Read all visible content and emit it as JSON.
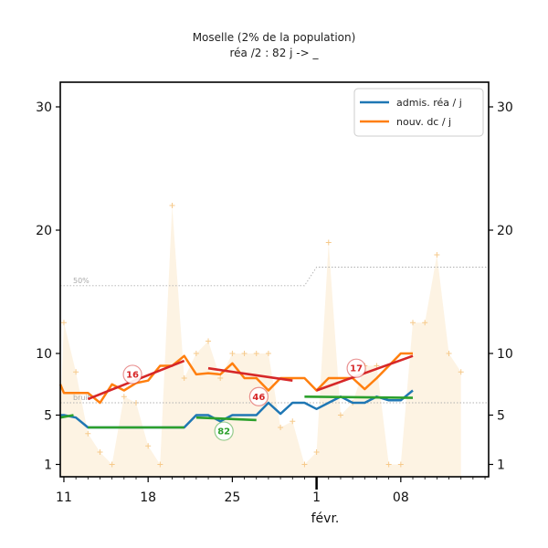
{
  "colors": {
    "adm": "#1f77b4",
    "dc": "#ff7f0e",
    "trend_red": "#d62728",
    "trend_green": "#2ca02c",
    "fill": "#fdf3e3",
    "plus": "#f6c98a",
    "ref": "#b0b0b0"
  },
  "chart_data": {
    "type": "line",
    "title": "Moselle (2% de la population)",
    "subtitle": "réa /2 : 82 j -> _",
    "x_unit": "day",
    "x_range": [
      -0.3,
      35.3
    ],
    "ylim": [
      0,
      32
    ],
    "ylabel": "",
    "y_ticks": [
      1,
      5,
      10,
      20,
      30
    ],
    "x_ticks": [
      {
        "day": 0,
        "label": "11"
      },
      {
        "day": 7,
        "label": "18"
      },
      {
        "day": 14,
        "label": "25"
      },
      {
        "day": 21,
        "label": "1"
      },
      {
        "day": 28,
        "label": "08"
      }
    ],
    "x_month_label": "févr.",
    "legend": [
      "admis. réa / j",
      "nouv. dc / j"
    ],
    "series": [
      {
        "name": "admis. réa / j",
        "color": "#1f77b4",
        "x": [
          -0.3,
          0,
          1,
          2,
          3,
          4,
          5,
          6,
          7,
          8,
          9,
          10,
          11,
          12,
          13,
          14,
          15,
          16,
          17,
          18,
          19,
          20,
          21,
          22,
          23,
          24,
          25,
          26,
          27,
          28,
          29
        ],
        "values": [
          5,
          5,
          4.8,
          4,
          4,
          4,
          4,
          4,
          4,
          4,
          4,
          4,
          5,
          5,
          4.5,
          5,
          5,
          5,
          6,
          5.1,
          6,
          6,
          5.5,
          6,
          6.5,
          6,
          6,
          6.5,
          6.2,
          6.2,
          7
        ]
      },
      {
        "name": "nouv. dc / j",
        "color": "#ff7f0e",
        "x": [
          -0.3,
          0,
          1,
          2,
          3,
          4,
          5,
          6,
          7,
          8,
          9,
          10,
          11,
          12,
          13,
          14,
          15,
          16,
          17,
          18,
          19,
          20,
          21,
          22,
          23,
          24,
          25,
          26,
          27,
          28,
          29
        ],
        "values": [
          7.5,
          6.8,
          6.8,
          6.8,
          6,
          7.5,
          7,
          7.6,
          7.8,
          9,
          9,
          9.8,
          8.3,
          8.4,
          8.3,
          9.2,
          8,
          8,
          7,
          8,
          8,
          8,
          7,
          8,
          8,
          8,
          7.1,
          8,
          9,
          10,
          10
        ]
      },
      {
        "name": "daily noise",
        "color": "#fdf3e3",
        "x": [
          -0.3,
          0,
          1,
          2,
          3,
          4,
          5,
          6,
          7,
          8,
          9,
          10,
          11,
          12,
          13,
          14,
          15,
          16,
          17,
          18,
          19,
          20,
          21,
          22,
          23,
          24,
          25,
          26,
          27,
          28,
          29,
          30,
          31,
          32,
          33
        ],
        "values": [
          5,
          12.5,
          8.5,
          3.5,
          2,
          1,
          6.5,
          6,
          2.5,
          1,
          22,
          8,
          10,
          11,
          8,
          10,
          10,
          10,
          10,
          4,
          4.5,
          1,
          2,
          19,
          5,
          6,
          9,
          9,
          1,
          1,
          12.5,
          12.5,
          18,
          10,
          8.5
        ]
      }
    ],
    "trends": [
      {
        "color": "#d62728",
        "x": [
          2,
          10
        ],
        "values": [
          6.3,
          9.4
        ]
      },
      {
        "color": "#d62728",
        "x": [
          12,
          19
        ],
        "values": [
          8.8,
          7.8
        ]
      },
      {
        "color": "#d62728",
        "x": [
          21,
          29
        ],
        "values": [
          7,
          9.8
        ]
      },
      {
        "color": "#2ca02c",
        "x": [
          -0.3,
          0.8
        ],
        "values": [
          4.8,
          5
        ]
      },
      {
        "color": "#2ca02c",
        "x": [
          2,
          10
        ],
        "values": [
          4,
          4
        ]
      },
      {
        "color": "#2ca02c",
        "x": [
          11,
          16
        ],
        "values": [
          4.8,
          4.6
        ]
      },
      {
        "color": "#2ca02c",
        "x": [
          20,
          29
        ],
        "values": [
          6.5,
          6.4
        ]
      }
    ],
    "reference_lines": [
      {
        "label": "50%",
        "x": [
          -0.3,
          20,
          21,
          35.3
        ],
        "values": [
          15.5,
          15.5,
          17,
          17
        ]
      },
      {
        "label": "bruit",
        "x": [
          -0.3,
          35.3
        ],
        "values": [
          6,
          6
        ]
      }
    ],
    "annotations": [
      {
        "text": "16",
        "x": 5.7,
        "y": 8.3,
        "color": "#d62728"
      },
      {
        "text": "46",
        "x": 16.2,
        "y": 6.5,
        "color": "#d62728"
      },
      {
        "text": "17",
        "x": 24.3,
        "y": 8.8,
        "color": "#d62728"
      },
      {
        "text": "82",
        "x": 13.3,
        "y": 3.7,
        "color": "#2ca02c"
      }
    ]
  }
}
